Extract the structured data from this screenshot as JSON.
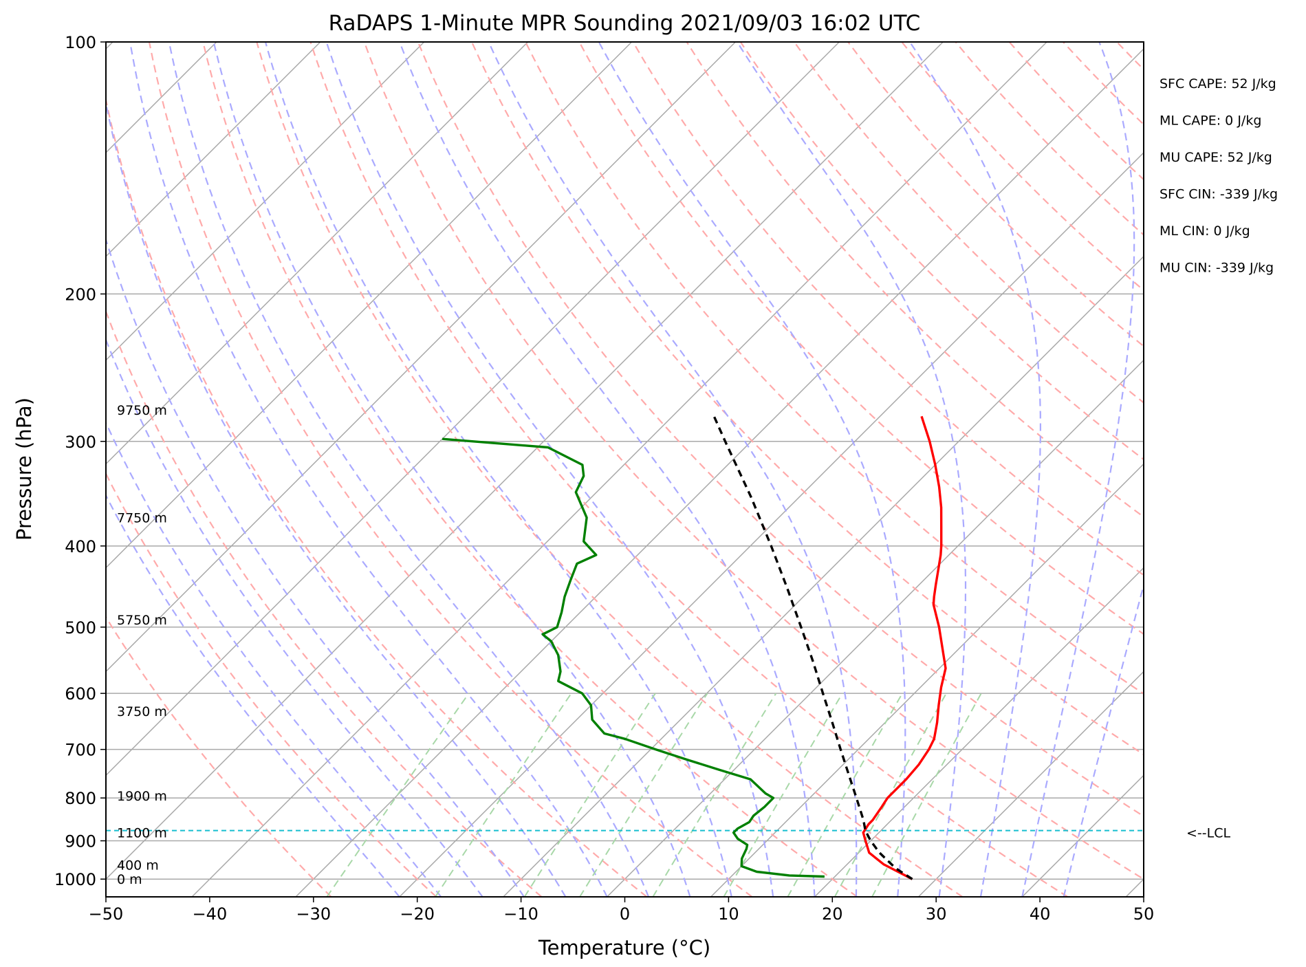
{
  "chart_data": {
    "type": "line",
    "title": "RaDAPS 1-Minute MPR Sounding 2021/09/03 16:02 UTC",
    "xlabel": "Temperature (°C)",
    "ylabel": "Pressure (hPa)",
    "xlim": [
      -50,
      50
    ],
    "ylim": [
      1050,
      100
    ],
    "y_scale": "log",
    "skew": "skew-T log-p",
    "grid": true,
    "x_ticks": [
      -50,
      -40,
      -30,
      -20,
      -10,
      0,
      10,
      20,
      30,
      40,
      50
    ],
    "x_tick_labels": [
      "−50",
      "−40",
      "−30",
      "−20",
      "−10",
      "0",
      "10",
      "20",
      "30",
      "40",
      "50"
    ],
    "y_ticks": [
      100,
      200,
      300,
      400,
      500,
      600,
      700,
      800,
      900,
      1000
    ],
    "y_tick_labels": [
      "100",
      "200",
      "300",
      "400",
      "500",
      "600",
      "700",
      "800",
      "900",
      "1000"
    ],
    "height_labels": [
      {
        "label": "9750 m",
        "p": 275
      },
      {
        "label": "7750 m",
        "p": 370
      },
      {
        "label": "5750 m",
        "p": 490
      },
      {
        "label": "3750 m",
        "p": 630
      },
      {
        "label": "1900 m",
        "p": 795
      },
      {
        "label": "1100 m",
        "p": 880
      },
      {
        "label": "400 m",
        "p": 962
      },
      {
        "label": "0 m",
        "p": 1000
      }
    ],
    "stats": [
      "SFC CAPE: 52 J/kg",
      "ML CAPE: 0 J/kg",
      "MU CAPE: 52 J/kg",
      "SFC CIN: -339 J/kg",
      "ML CIN: 0 J/kg",
      "MU CIN: -339 J/kg"
    ],
    "lcl": {
      "p": 875,
      "label": "<--LCL"
    },
    "series": [
      {
        "color": "#ff0000",
        "points": [
          [
            1000,
            27.7
          ],
          [
            960,
            23.5
          ],
          [
            930,
            21.0
          ],
          [
            900,
            19.5
          ],
          [
            880,
            18.5
          ],
          [
            860,
            18.2
          ],
          [
            850,
            18.2
          ],
          [
            820,
            17.8
          ],
          [
            800,
            17.5
          ],
          [
            760,
            17.5
          ],
          [
            730,
            17.3
          ],
          [
            700,
            16.8
          ],
          [
            680,
            16.3
          ],
          [
            650,
            15.0
          ],
          [
            620,
            13.5
          ],
          [
            590,
            12.0
          ],
          [
            560,
            10.6
          ],
          [
            545,
            9.5
          ],
          [
            500,
            6.0
          ],
          [
            470,
            3.3
          ],
          [
            460,
            2.6
          ],
          [
            445,
            1.6
          ],
          [
            430,
            0.6
          ],
          [
            410,
            -0.8
          ],
          [
            400,
            -1.6
          ],
          [
            380,
            -3.4
          ],
          [
            360,
            -5.3
          ],
          [
            340,
            -7.5
          ],
          [
            320,
            -10.0
          ],
          [
            300,
            -12.8
          ],
          [
            280,
            -16.0
          ]
        ]
      },
      {
        "color": "#008000",
        "points": [
          [
            993,
            19.0
          ],
          [
            990,
            15.5
          ],
          [
            980,
            12.0
          ],
          [
            965,
            10.0
          ],
          [
            945,
            9.3
          ],
          [
            920,
            8.8
          ],
          [
            910,
            8.5
          ],
          [
            895,
            7.0
          ],
          [
            880,
            6.0
          ],
          [
            870,
            6.0
          ],
          [
            855,
            6.5
          ],
          [
            840,
            6.3
          ],
          [
            820,
            6.5
          ],
          [
            800,
            6.5
          ],
          [
            790,
            5.3
          ],
          [
            760,
            2.5
          ],
          [
            740,
            -1.5
          ],
          [
            720,
            -5.5
          ],
          [
            700,
            -9.5
          ],
          [
            680,
            -13.5
          ],
          [
            670,
            -16.0
          ],
          [
            645,
            -18.5
          ],
          [
            620,
            -20.0
          ],
          [
            600,
            -22.0
          ],
          [
            580,
            -25.5
          ],
          [
            565,
            -26.2
          ],
          [
            540,
            -28.0
          ],
          [
            520,
            -30.0
          ],
          [
            510,
            -31.5
          ],
          [
            500,
            -30.8
          ],
          [
            480,
            -31.8
          ],
          [
            460,
            -33.0
          ],
          [
            440,
            -34.0
          ],
          [
            420,
            -35.0
          ],
          [
            410,
            -34.0
          ],
          [
            395,
            -36.5
          ],
          [
            370,
            -38.5
          ],
          [
            345,
            -42.0
          ],
          [
            330,
            -42.8
          ],
          [
            320,
            -44.0
          ],
          [
            305,
            -49.0
          ],
          [
            298,
            -60.0
          ]
        ]
      },
      {
        "color": "#000000",
        "dashed": true,
        "points": [
          [
            1000,
            27.7
          ],
          [
            970,
            25.0
          ],
          [
            930,
            22.0
          ],
          [
            900,
            20.0
          ],
          [
            875,
            18.5
          ],
          [
            850,
            17.3
          ],
          [
            800,
            14.5
          ],
          [
            750,
            11.5
          ],
          [
            700,
            8.3
          ],
          [
            650,
            4.9
          ],
          [
            600,
            1.2
          ],
          [
            550,
            -2.8
          ],
          [
            500,
            -7.3
          ],
          [
            450,
            -12.3
          ],
          [
            400,
            -18.0
          ],
          [
            350,
            -24.6
          ],
          [
            300,
            -32.5
          ],
          [
            280,
            -36.0
          ]
        ]
      }
    ],
    "background_lines": {
      "isotherm_color": "#a9a9a9",
      "dry_adiabat_color": "#ffaaaa",
      "moist_adiabat_color": "#aaaaff",
      "mixing_ratio_color": "#a8d8a8",
      "lcl_color": "#17becf"
    }
  }
}
